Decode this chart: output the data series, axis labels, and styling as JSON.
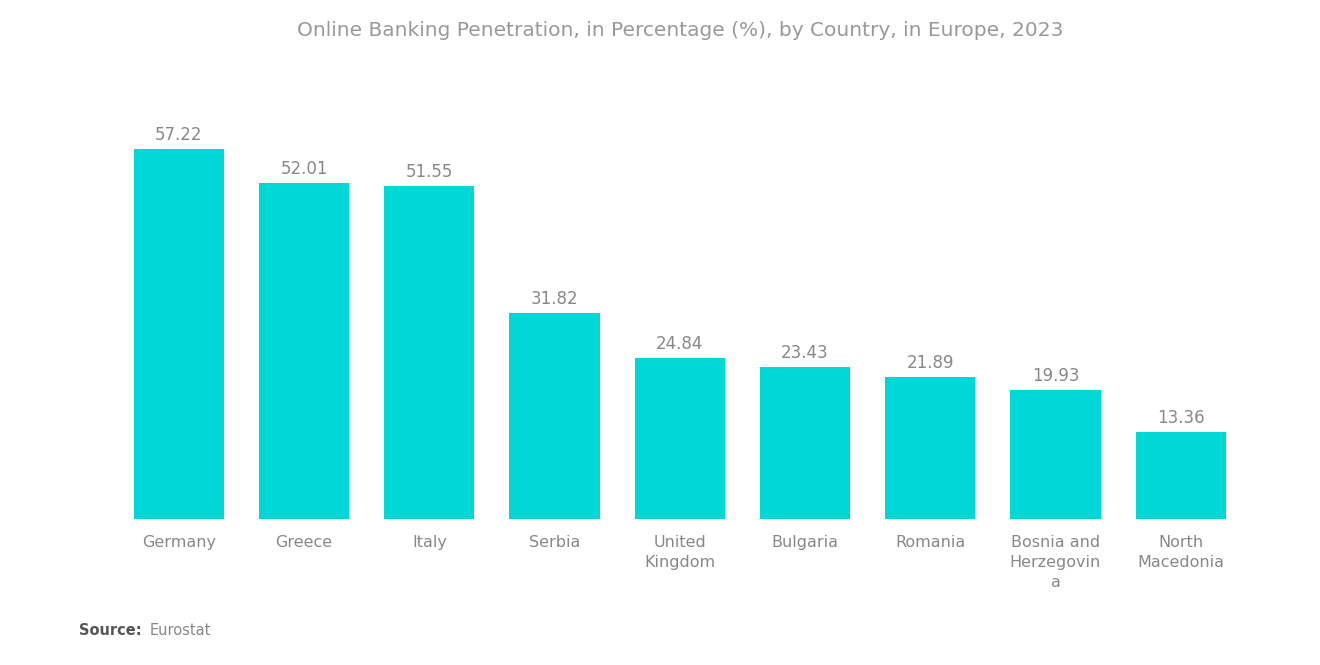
{
  "title": "Online Banking Penetration, in Percentage (%), by Country, in Europe, 2023",
  "categories": [
    "Germany",
    "Greece",
    "Italy",
    "Serbia",
    "United\nKingdom",
    "Bulgaria",
    "Romania",
    "Bosnia and\nHerzegovin\na",
    "North\nMacedonia"
  ],
  "values": [
    57.22,
    52.01,
    51.55,
    31.82,
    24.84,
    23.43,
    21.89,
    19.93,
    13.36
  ],
  "bar_color": "#00D8D8",
  "title_color": "#999999",
  "label_color": "#888888",
  "tick_color": "#888888",
  "source_bold": "Source:",
  "source_text": "Eurostat",
  "background_color": "#ffffff",
  "bar_width": 0.72,
  "ylim": [
    0,
    70
  ],
  "value_fontsize": 12,
  "tick_fontsize": 11.5,
  "title_fontsize": 14.5
}
